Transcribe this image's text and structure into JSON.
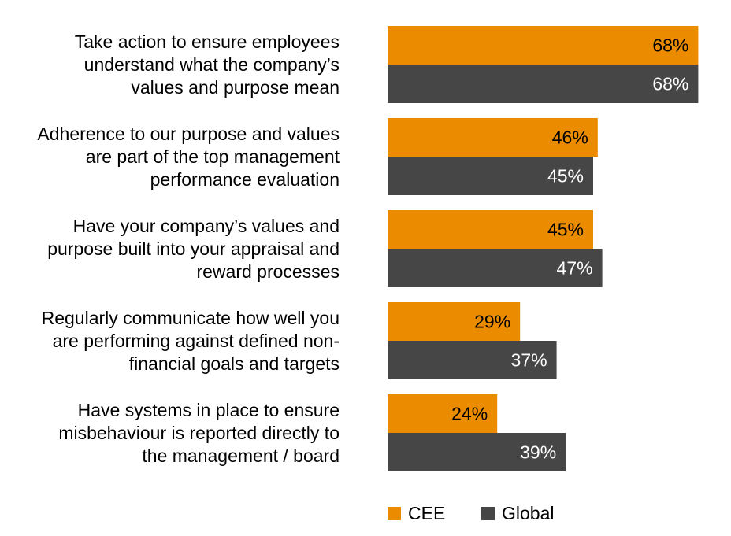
{
  "chart_data": {
    "type": "bar",
    "orientation": "horizontal",
    "categories": [
      [
        "Take action to ensure employees",
        "understand what the company’s",
        "values and purpose mean"
      ],
      [
        "Adherence to our purpose and values",
        "are part of the top management",
        "performance evaluation"
      ],
      [
        "Have your company’s values and",
        "purpose built into your appraisal and",
        "reward processes"
      ],
      [
        "Regularly communicate how well you",
        "are performing against defined non-",
        "financial goals and targets"
      ],
      [
        "Have systems in place to ensure",
        "misbehaviour is reported directly to",
        "the management / board"
      ]
    ],
    "series": [
      {
        "name": "CEE",
        "color": "#EB8C00",
        "label_color": "#000000",
        "values": [
          68,
          46,
          45,
          29,
          24
        ],
        "labels": [
          "68%",
          "46%",
          "45%",
          "29%",
          "24%"
        ]
      },
      {
        "name": "Global",
        "color": "#464646",
        "label_color": "#ffffff",
        "values": [
          68,
          45,
          47,
          37,
          39
        ],
        "labels": [
          "68%",
          "45%",
          "47%",
          "37%",
          "39%"
        ]
      }
    ],
    "xlim": [
      0,
      100
    ],
    "value_unit": "%",
    "grid": false,
    "axes_visible": false,
    "legend_position": "bottom"
  }
}
